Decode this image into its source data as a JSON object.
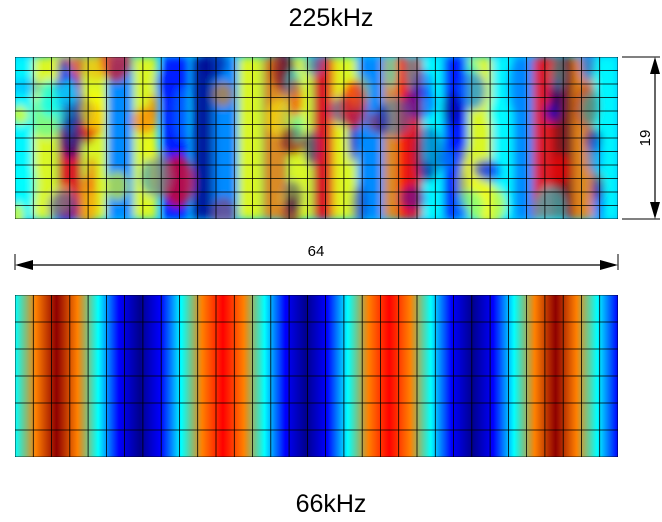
{
  "titles": {
    "top_panel": "225kHz",
    "bottom_panel": "66kHz"
  },
  "dimensions": {
    "width_label": "64",
    "height_label": "19"
  },
  "colormap": [
    "#00008f",
    "#0000ff",
    "#0080ff",
    "#00ffff",
    "#ffff00",
    "#ff8000",
    "#ff0000",
    "#8f0000"
  ],
  "top_panel": {
    "frequency": "225kHz",
    "mesh_columns": 33,
    "mesh_rows": 12
  },
  "bottom_panel": {
    "frequency": "66kHz",
    "mesh_columns": 33,
    "mesh_rows": 6
  }
}
